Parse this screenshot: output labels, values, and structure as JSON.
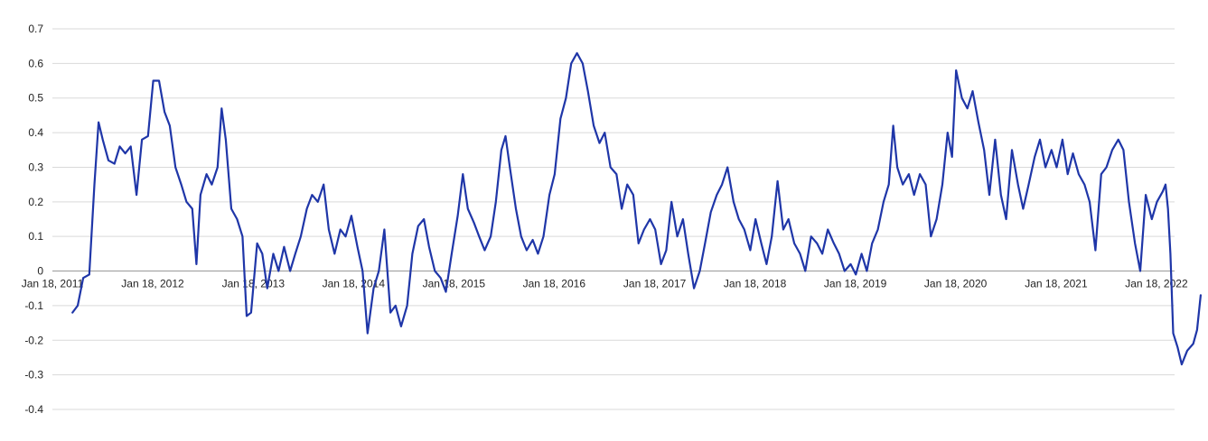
{
  "chart_data": {
    "type": "line",
    "title": "",
    "xlabel": "",
    "ylabel": "",
    "ylim": [
      -0.4,
      0.7
    ],
    "xlim": [
      "2011-01-18",
      "2022-03-25"
    ],
    "grid": "horizontal",
    "legend": "none",
    "y_ticks": [
      "0.7",
      "0.6",
      "0.5",
      "0.4",
      "0.3",
      "0.2",
      "0.1",
      "0",
      "-0.1",
      "-0.2",
      "-0.3",
      "-0.4"
    ],
    "x_ticks": [
      {
        "date": "2011-01-18",
        "label": "Jan 18, 2011"
      },
      {
        "date": "2012-01-18",
        "label": "Jan 18, 2012"
      },
      {
        "date": "2013-01-18",
        "label": "Jan 18, 2013"
      },
      {
        "date": "2014-01-18",
        "label": "Jan 18, 2014"
      },
      {
        "date": "2015-01-18",
        "label": "Jan 18, 2015"
      },
      {
        "date": "2016-01-18",
        "label": "Jan 18, 2016"
      },
      {
        "date": "2017-01-18",
        "label": "Jan 18, 2017"
      },
      {
        "date": "2018-01-18",
        "label": "Jan 18, 2018"
      },
      {
        "date": "2019-01-18",
        "label": "Jan 18, 2019"
      },
      {
        "date": "2020-01-18",
        "label": "Jan 18, 2020"
      },
      {
        "date": "2021-01-18",
        "label": "Jan 18, 2021"
      },
      {
        "date": "2022-01-18",
        "label": "Jan 18, 2022"
      }
    ],
    "series": [
      {
        "color": "#1f36a8",
        "points": [
          [
            "2011-04-01",
            -0.12
          ],
          [
            "2011-04-20",
            -0.1
          ],
          [
            "2011-05-10",
            -0.02
          ],
          [
            "2011-06-01",
            -0.01
          ],
          [
            "2011-06-20",
            0.25
          ],
          [
            "2011-07-05",
            0.43
          ],
          [
            "2011-07-20",
            0.38
          ],
          [
            "2011-08-10",
            0.32
          ],
          [
            "2011-09-01",
            0.31
          ],
          [
            "2011-09-20",
            0.36
          ],
          [
            "2011-10-10",
            0.34
          ],
          [
            "2011-10-30",
            0.36
          ],
          [
            "2011-11-20",
            0.22
          ],
          [
            "2011-12-10",
            0.38
          ],
          [
            "2012-01-01",
            0.39
          ],
          [
            "2012-01-20",
            0.55
          ],
          [
            "2012-02-10",
            0.55
          ],
          [
            "2012-03-01",
            0.46
          ],
          [
            "2012-03-20",
            0.42
          ],
          [
            "2012-04-10",
            0.3
          ],
          [
            "2012-05-01",
            0.25
          ],
          [
            "2012-05-20",
            0.2
          ],
          [
            "2012-06-10",
            0.18
          ],
          [
            "2012-06-25",
            0.02
          ],
          [
            "2012-07-10",
            0.22
          ],
          [
            "2012-08-01",
            0.28
          ],
          [
            "2012-08-20",
            0.25
          ],
          [
            "2012-09-10",
            0.3
          ],
          [
            "2012-09-25",
            0.47
          ],
          [
            "2012-10-10",
            0.38
          ],
          [
            "2012-10-30",
            0.18
          ],
          [
            "2012-11-20",
            0.15
          ],
          [
            "2012-12-10",
            0.1
          ],
          [
            "2012-12-25",
            -0.13
          ],
          [
            "2013-01-10",
            -0.12
          ],
          [
            "2013-02-01",
            0.08
          ],
          [
            "2013-02-20",
            0.05
          ],
          [
            "2013-03-10",
            -0.05
          ],
          [
            "2013-04-01",
            0.05
          ],
          [
            "2013-04-20",
            0.0
          ],
          [
            "2013-05-10",
            0.07
          ],
          [
            "2013-06-01",
            0.0
          ],
          [
            "2013-06-20",
            0.05
          ],
          [
            "2013-07-10",
            0.1
          ],
          [
            "2013-08-01",
            0.18
          ],
          [
            "2013-08-20",
            0.22
          ],
          [
            "2013-09-10",
            0.2
          ],
          [
            "2013-10-01",
            0.25
          ],
          [
            "2013-10-20",
            0.12
          ],
          [
            "2013-11-10",
            0.05
          ],
          [
            "2013-12-01",
            0.12
          ],
          [
            "2013-12-20",
            0.1
          ],
          [
            "2014-01-10",
            0.16
          ],
          [
            "2014-02-01",
            0.07
          ],
          [
            "2014-02-20",
            0.0
          ],
          [
            "2014-03-10",
            -0.18
          ],
          [
            "2014-04-01",
            -0.05
          ],
          [
            "2014-04-20",
            0.0
          ],
          [
            "2014-05-10",
            0.12
          ],
          [
            "2014-06-01",
            -0.12
          ],
          [
            "2014-06-20",
            -0.1
          ],
          [
            "2014-07-10",
            -0.16
          ],
          [
            "2014-08-01",
            -0.1
          ],
          [
            "2014-08-20",
            0.05
          ],
          [
            "2014-09-10",
            0.13
          ],
          [
            "2014-10-01",
            0.15
          ],
          [
            "2014-10-20",
            0.07
          ],
          [
            "2014-11-10",
            0.0
          ],
          [
            "2014-12-01",
            -0.02
          ],
          [
            "2014-12-20",
            -0.06
          ],
          [
            "2015-01-10",
            0.05
          ],
          [
            "2015-02-01",
            0.16
          ],
          [
            "2015-02-20",
            0.28
          ],
          [
            "2015-03-10",
            0.18
          ],
          [
            "2015-04-01",
            0.14
          ],
          [
            "2015-04-20",
            0.1
          ],
          [
            "2015-05-10",
            0.06
          ],
          [
            "2015-06-01",
            0.1
          ],
          [
            "2015-06-20",
            0.2
          ],
          [
            "2015-07-10",
            0.35
          ],
          [
            "2015-07-25",
            0.39
          ],
          [
            "2015-08-10",
            0.3
          ],
          [
            "2015-09-01",
            0.18
          ],
          [
            "2015-09-20",
            0.1
          ],
          [
            "2015-10-10",
            0.06
          ],
          [
            "2015-11-01",
            0.09
          ],
          [
            "2015-11-20",
            0.05
          ],
          [
            "2015-12-10",
            0.1
          ],
          [
            "2016-01-01",
            0.22
          ],
          [
            "2016-01-20",
            0.28
          ],
          [
            "2016-02-10",
            0.44
          ],
          [
            "2016-03-01",
            0.5
          ],
          [
            "2016-03-20",
            0.6
          ],
          [
            "2016-04-10",
            0.63
          ],
          [
            "2016-05-01",
            0.6
          ],
          [
            "2016-05-20",
            0.52
          ],
          [
            "2016-06-10",
            0.42
          ],
          [
            "2016-07-01",
            0.37
          ],
          [
            "2016-07-20",
            0.4
          ],
          [
            "2016-08-10",
            0.3
          ],
          [
            "2016-09-01",
            0.28
          ],
          [
            "2016-09-20",
            0.18
          ],
          [
            "2016-10-10",
            0.25
          ],
          [
            "2016-11-01",
            0.22
          ],
          [
            "2016-11-20",
            0.08
          ],
          [
            "2016-12-10",
            0.12
          ],
          [
            "2017-01-01",
            0.15
          ],
          [
            "2017-01-20",
            0.12
          ],
          [
            "2017-02-10",
            0.02
          ],
          [
            "2017-03-01",
            0.06
          ],
          [
            "2017-03-20",
            0.2
          ],
          [
            "2017-04-10",
            0.1
          ],
          [
            "2017-05-01",
            0.15
          ],
          [
            "2017-05-20",
            0.05
          ],
          [
            "2017-06-10",
            -0.05
          ],
          [
            "2017-07-01",
            0.0
          ],
          [
            "2017-07-20",
            0.08
          ],
          [
            "2017-08-10",
            0.17
          ],
          [
            "2017-09-01",
            0.22
          ],
          [
            "2017-09-20",
            0.25
          ],
          [
            "2017-10-10",
            0.3
          ],
          [
            "2017-11-01",
            0.2
          ],
          [
            "2017-11-20",
            0.15
          ],
          [
            "2017-12-10",
            0.12
          ],
          [
            "2018-01-01",
            0.06
          ],
          [
            "2018-01-20",
            0.15
          ],
          [
            "2018-02-10",
            0.08
          ],
          [
            "2018-03-01",
            0.02
          ],
          [
            "2018-03-20",
            0.1
          ],
          [
            "2018-04-10",
            0.26
          ],
          [
            "2018-05-01",
            0.12
          ],
          [
            "2018-05-20",
            0.15
          ],
          [
            "2018-06-10",
            0.08
          ],
          [
            "2018-07-01",
            0.05
          ],
          [
            "2018-07-20",
            0.0
          ],
          [
            "2018-08-10",
            0.1
          ],
          [
            "2018-09-01",
            0.08
          ],
          [
            "2018-09-20",
            0.05
          ],
          [
            "2018-10-10",
            0.12
          ],
          [
            "2018-11-01",
            0.08
          ],
          [
            "2018-11-20",
            0.05
          ],
          [
            "2018-12-10",
            0.0
          ],
          [
            "2019-01-01",
            0.02
          ],
          [
            "2019-01-20",
            -0.01
          ],
          [
            "2019-02-10",
            0.05
          ],
          [
            "2019-03-01",
            0.0
          ],
          [
            "2019-03-20",
            0.08
          ],
          [
            "2019-04-10",
            0.12
          ],
          [
            "2019-05-01",
            0.2
          ],
          [
            "2019-05-20",
            0.25
          ],
          [
            "2019-06-05",
            0.42
          ],
          [
            "2019-06-20",
            0.3
          ],
          [
            "2019-07-10",
            0.25
          ],
          [
            "2019-08-01",
            0.28
          ],
          [
            "2019-08-20",
            0.22
          ],
          [
            "2019-09-10",
            0.28
          ],
          [
            "2019-10-01",
            0.25
          ],
          [
            "2019-10-20",
            0.1
          ],
          [
            "2019-11-10",
            0.15
          ],
          [
            "2019-12-01",
            0.25
          ],
          [
            "2019-12-20",
            0.4
          ],
          [
            "2020-01-05",
            0.33
          ],
          [
            "2020-01-20",
            0.58
          ],
          [
            "2020-02-10",
            0.5
          ],
          [
            "2020-03-01",
            0.47
          ],
          [
            "2020-03-20",
            0.52
          ],
          [
            "2020-04-10",
            0.43
          ],
          [
            "2020-05-01",
            0.35
          ],
          [
            "2020-05-20",
            0.22
          ],
          [
            "2020-06-10",
            0.38
          ],
          [
            "2020-07-01",
            0.22
          ],
          [
            "2020-07-20",
            0.15
          ],
          [
            "2020-08-10",
            0.35
          ],
          [
            "2020-09-01",
            0.25
          ],
          [
            "2020-09-20",
            0.18
          ],
          [
            "2020-10-10",
            0.25
          ],
          [
            "2020-11-01",
            0.33
          ],
          [
            "2020-11-20",
            0.38
          ],
          [
            "2020-12-10",
            0.3
          ],
          [
            "2021-01-01",
            0.35
          ],
          [
            "2021-01-20",
            0.3
          ],
          [
            "2021-02-10",
            0.38
          ],
          [
            "2021-03-01",
            0.28
          ],
          [
            "2021-03-20",
            0.34
          ],
          [
            "2021-04-10",
            0.28
          ],
          [
            "2021-05-01",
            0.25
          ],
          [
            "2021-05-20",
            0.2
          ],
          [
            "2021-06-10",
            0.06
          ],
          [
            "2021-07-01",
            0.28
          ],
          [
            "2021-07-20",
            0.3
          ],
          [
            "2021-08-10",
            0.35
          ],
          [
            "2021-09-01",
            0.38
          ],
          [
            "2021-09-20",
            0.35
          ],
          [
            "2021-10-10",
            0.2
          ],
          [
            "2021-11-01",
            0.08
          ],
          [
            "2021-11-20",
            0.0
          ],
          [
            "2021-12-10",
            0.22
          ],
          [
            "2022-01-01",
            0.15
          ],
          [
            "2022-01-20",
            0.2
          ],
          [
            "2022-02-10",
            0.23
          ],
          [
            "2022-02-20",
            0.25
          ],
          [
            "2022-03-01",
            0.18
          ],
          [
            "2022-03-10",
            0.05
          ],
          [
            "2022-03-20",
            -0.18
          ],
          [
            "2022-04-05",
            -0.22
          ],
          [
            "2022-04-20",
            -0.27
          ],
          [
            "2022-05-10",
            -0.23
          ],
          [
            "2022-06-01",
            -0.21
          ],
          [
            "2022-06-15",
            -0.17
          ],
          [
            "2022-06-28",
            -0.07
          ]
        ]
      }
    ]
  }
}
